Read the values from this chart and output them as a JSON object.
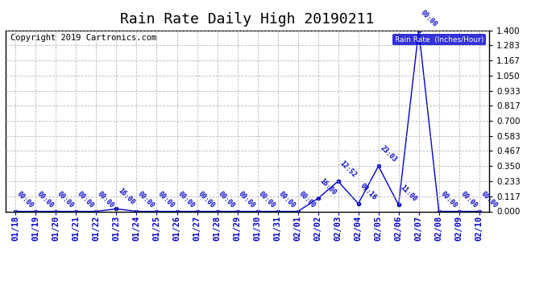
{
  "title": "Rain Rate Daily High 20190211",
  "copyright": "Copyright 2019 Cartronics.com",
  "legend_label": "Rain Rate  (Inches/Hour)",
  "legend_bg": "#0000cc",
  "legend_fg": "#ffffff",
  "line_color": "#0000cc",
  "background_color": "#ffffff",
  "plot_bg": "#ffffff",
  "ylim": [
    0.0,
    1.4
  ],
  "yticks": [
    0.0,
    0.117,
    0.233,
    0.35,
    0.467,
    0.583,
    0.7,
    0.817,
    0.933,
    1.05,
    1.167,
    1.283,
    1.4
  ],
  "x_dates": [
    "01/18",
    "01/19",
    "01/20",
    "01/21",
    "01/22",
    "01/23",
    "01/24",
    "01/25",
    "01/26",
    "01/27",
    "01/28",
    "01/29",
    "01/30",
    "01/31",
    "02/01",
    "02/02",
    "02/03",
    "02/04",
    "02/05",
    "02/06",
    "02/07",
    "02/08",
    "02/09",
    "02/10"
  ],
  "x_times": [
    "00:00",
    "00:00",
    "00:00",
    "00:00",
    "00:00",
    "16:00",
    "00:00",
    "00:00",
    "00:00",
    "00:00",
    "00:00",
    "00:00",
    "00:00",
    "00:00",
    "00:00",
    "16:00",
    "12:52",
    "09:16",
    "23:03",
    "11:00",
    "00:00",
    "00:00",
    "00:00",
    "00:00"
  ],
  "y_values": [
    0.0,
    0.0,
    0.0,
    0.0,
    0.0,
    0.02,
    0.0,
    0.0,
    0.0,
    0.0,
    0.0,
    0.0,
    0.0,
    0.0,
    0.0,
    0.1,
    0.233,
    0.06,
    0.35,
    0.05,
    1.4,
    0.0,
    0.0,
    0.0
  ],
  "title_fontsize": 13,
  "tick_fontsize": 7.5,
  "copyright_fontsize": 7.5,
  "grid_color": "#aaaaaa",
  "grid_linestyle": "--",
  "marker": "o",
  "marker_size": 3
}
